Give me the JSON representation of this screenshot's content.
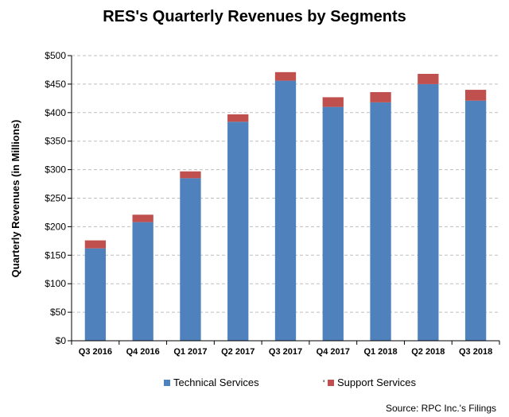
{
  "chart_data": {
    "type": "bar",
    "stacked": true,
    "title": "RES's Quarterly Revenues by Segments",
    "xlabel": "",
    "ylabel": "Quarterly Revenues (in Millions)",
    "categories": [
      "Q3 2016",
      "Q4 2016",
      "Q1 2017",
      "Q2 2017",
      "Q3 2017",
      "Q4 2017",
      "Q1 2018",
      "Q2 2018",
      "Q3 2018"
    ],
    "series": [
      {
        "name": "Technical Services",
        "color": "#4f81bd",
        "values": [
          162,
          208,
          285,
          384,
          456,
          410,
          418,
          450,
          421
        ]
      },
      {
        "name": "Support Services",
        "color": "#c0504d",
        "values": [
          14,
          13,
          12,
          13,
          15,
          17,
          18,
          18,
          19
        ]
      }
    ],
    "ylim": [
      0,
      500
    ],
    "yticks": [
      0,
      50,
      100,
      150,
      200,
      250,
      300,
      350,
      400,
      450,
      500
    ],
    "ytick_labels": [
      "$0",
      "$50",
      "$100",
      "$150",
      "$200",
      "$250",
      "$300",
      "$350",
      "$400",
      "$450",
      "$500"
    ],
    "grid": true,
    "legend_position": "bottom",
    "source": "Source: RPC Inc.'s Filings",
    "stray_mark": "'"
  }
}
